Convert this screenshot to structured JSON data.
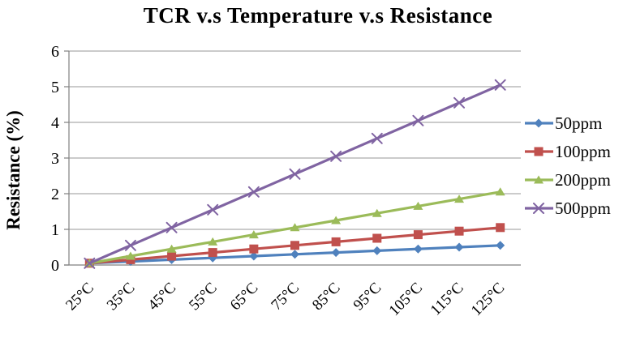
{
  "chart_data": {
    "type": "line",
    "title": "TCR v.s Temperature v.s Resistance",
    "ylabel": "Resistance (%)",
    "xlabel": "",
    "categories": [
      "25°C",
      "35°C",
      "45°C",
      "55°C",
      "65°C",
      "75°C",
      "85°C",
      "95°C",
      "105°C",
      "115°C",
      "125°C"
    ],
    "series": [
      {
        "name": "50ppm",
        "color": "#4F81BD",
        "marker": "diamond",
        "values": [
          0.05,
          0.1,
          0.15,
          0.2,
          0.25,
          0.3,
          0.35,
          0.4,
          0.45,
          0.5,
          0.55
        ]
      },
      {
        "name": "100ppm",
        "color": "#C0504D",
        "marker": "square",
        "values": [
          0.05,
          0.15,
          0.25,
          0.35,
          0.45,
          0.55,
          0.65,
          0.75,
          0.85,
          0.95,
          1.05
        ]
      },
      {
        "name": "200ppm",
        "color": "#9BBB59",
        "marker": "triangle",
        "values": [
          0.05,
          0.25,
          0.45,
          0.65,
          0.85,
          1.05,
          1.25,
          1.45,
          1.65,
          1.85,
          2.05
        ]
      },
      {
        "name": "500ppm",
        "color": "#8064A2",
        "marker": "x",
        "values": [
          0.05,
          0.55,
          1.05,
          1.55,
          2.05,
          2.55,
          3.05,
          3.55,
          4.05,
          4.55,
          5.05
        ]
      }
    ],
    "ylim": [
      0,
      6
    ],
    "yticks": [
      0,
      1,
      2,
      3,
      4,
      5,
      6
    ],
    "grid": "horizontal",
    "legend_position": "right",
    "grid_color": "#ACACAC",
    "axis_color": "#808080",
    "text_color": "#000000"
  }
}
